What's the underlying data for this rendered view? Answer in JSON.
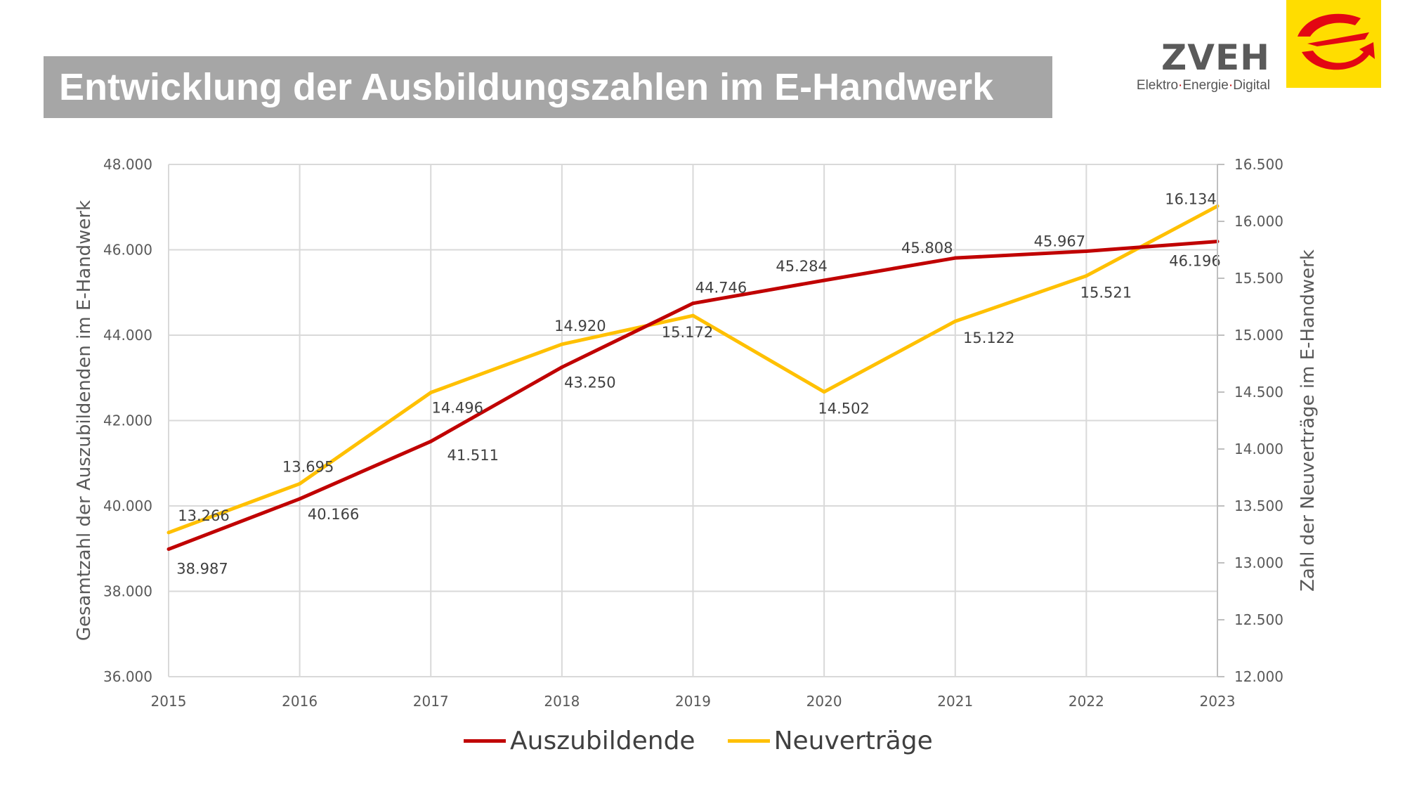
{
  "title": "Entwicklung der Ausbildungszahlen im E-Handwerk",
  "logo": {
    "name": "ZVEH",
    "tagline_parts": [
      "Elektro",
      "Energie",
      "Digital"
    ],
    "tagline_separator": "·",
    "colors": {
      "badge_bg": "#ffdd00",
      "mark": "#e30613",
      "text": "#5a5a5a"
    }
  },
  "chart_data": {
    "type": "line",
    "categories": [
      "2015",
      "2016",
      "2017",
      "2018",
      "2019",
      "2020",
      "2021",
      "2022",
      "2023"
    ],
    "y_left": {
      "label": "Gesamtzahl der Auszubildenden im E-Handwerk",
      "ylim": [
        36000,
        48000
      ],
      "ticks": [
        "36.000",
        "38.000",
        "40.000",
        "42.000",
        "44.000",
        "46.000",
        "48.000"
      ],
      "tick_values": [
        36000,
        38000,
        40000,
        42000,
        44000,
        46000,
        48000
      ]
    },
    "y_right": {
      "label": "Zahl der Neuverträge im E-Handwerk",
      "ylim": [
        12000,
        16500
      ],
      "ticks": [
        "12.000",
        "12.500",
        "13.000",
        "13.500",
        "14.000",
        "14.500",
        "15.000",
        "15.500",
        "16.000",
        "16.500"
      ],
      "tick_values": [
        12000,
        12500,
        13000,
        13500,
        14000,
        14500,
        15000,
        15500,
        16000,
        16500
      ]
    },
    "series": [
      {
        "name": "Auszubildende",
        "axis": "left",
        "color": "#c00000",
        "values": [
          38987,
          40166,
          41511,
          43250,
          44746,
          45284,
          45808,
          45967,
          46196
        ],
        "labels": [
          "38.987",
          "40.166",
          "41.511",
          "43.250",
          "44.746",
          "45.284",
          "45.808",
          "45.967",
          "46.196"
        ]
      },
      {
        "name": "Neuverträge",
        "axis": "right",
        "color": "#ffc000",
        "values": [
          13266,
          13695,
          14496,
          14920,
          15172,
          14502,
          15122,
          15521,
          16134
        ],
        "labels": [
          "13.266",
          "13.695",
          "14.496",
          "14.920",
          "15.172",
          "14.502",
          "15.122",
          "15.521",
          "16.134"
        ]
      }
    ],
    "grid": true,
    "legend_position": "bottom"
  }
}
